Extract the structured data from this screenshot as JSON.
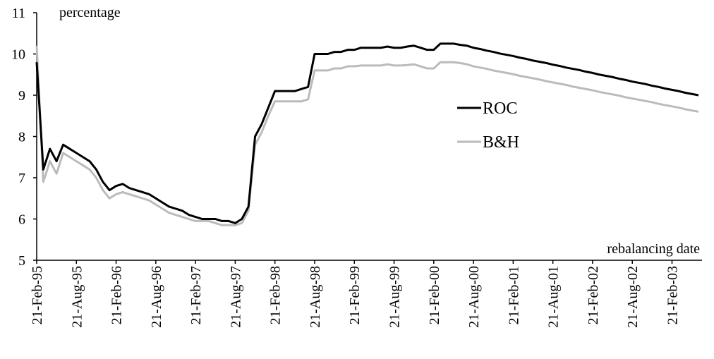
{
  "chart_data": {
    "type": "line",
    "y_label": "percentage",
    "x_label": "rebalancing date",
    "categories": [
      "21-Feb-95",
      null,
      null,
      null,
      null,
      null,
      "21-Aug-95",
      null,
      null,
      null,
      null,
      null,
      "21-Feb-96",
      null,
      null,
      null,
      null,
      null,
      "21-Aug-96",
      null,
      null,
      null,
      null,
      null,
      "21-Feb-97",
      null,
      null,
      null,
      null,
      null,
      "21-Aug-97",
      null,
      null,
      null,
      null,
      null,
      "21-Feb-98",
      null,
      null,
      null,
      null,
      null,
      "21-Aug-98",
      null,
      null,
      null,
      null,
      null,
      "21-Feb-99",
      null,
      null,
      null,
      null,
      null,
      "21-Aug-99",
      null,
      null,
      null,
      null,
      null,
      "21-Feb-00",
      null,
      null,
      null,
      null,
      null,
      "21-Aug-00",
      null,
      null,
      null,
      null,
      null,
      "21-Feb-01",
      null,
      null,
      null,
      null,
      null,
      "21-Aug-01",
      null,
      null,
      null,
      null,
      null,
      "21-Feb-02",
      null,
      null,
      null,
      null,
      null,
      "21-Aug-02",
      null,
      null,
      null,
      null,
      null,
      "21-Feb-03",
      null,
      null,
      null,
      null
    ],
    "series": [
      {
        "name": "ROC",
        "color": "#000000",
        "values": [
          9.8,
          7.2,
          7.7,
          7.4,
          7.8,
          7.7,
          7.6,
          7.5,
          7.4,
          7.2,
          6.9,
          6.7,
          6.8,
          6.85,
          6.75,
          6.7,
          6.65,
          6.6,
          6.5,
          6.4,
          6.3,
          6.25,
          6.2,
          6.1,
          6.05,
          6.0,
          6.0,
          6.0,
          5.95,
          5.95,
          5.9,
          6.0,
          6.3,
          8.0,
          8.3,
          8.7,
          9.1,
          9.1,
          9.1,
          9.1,
          9.15,
          9.2,
          10.0,
          10.0,
          10.0,
          10.05,
          10.05,
          10.1,
          10.1,
          10.15,
          10.15,
          10.15,
          10.15,
          10.18,
          10.15,
          10.15,
          10.18,
          10.2,
          10.15,
          10.1,
          10.1,
          10.25,
          10.25,
          10.25,
          10.22,
          10.2,
          10.15,
          10.12,
          10.08,
          10.05,
          10.01,
          9.98,
          9.95,
          9.91,
          9.88,
          9.84,
          9.81,
          9.78,
          9.74,
          9.71,
          9.67,
          9.64,
          9.61,
          9.57,
          9.54,
          9.5,
          9.47,
          9.44,
          9.4,
          9.37,
          9.33,
          9.3,
          9.27,
          9.23,
          9.2,
          9.16,
          9.13,
          9.1,
          9.06,
          9.03,
          9.0
        ]
      },
      {
        "name": "B&H",
        "color": "#bbbbbb",
        "values": [
          10.2,
          6.9,
          7.4,
          7.1,
          7.6,
          7.5,
          7.4,
          7.3,
          7.2,
          7.0,
          6.7,
          6.5,
          6.6,
          6.65,
          6.6,
          6.55,
          6.5,
          6.45,
          6.35,
          6.25,
          6.15,
          6.1,
          6.05,
          6.0,
          5.95,
          5.95,
          5.95,
          5.9,
          5.85,
          5.85,
          5.85,
          5.9,
          6.2,
          7.8,
          8.1,
          8.5,
          8.85,
          8.85,
          8.85,
          8.85,
          8.85,
          8.9,
          9.6,
          9.6,
          9.6,
          9.65,
          9.65,
          9.7,
          9.7,
          9.72,
          9.72,
          9.72,
          9.72,
          9.75,
          9.72,
          9.72,
          9.73,
          9.75,
          9.7,
          9.65,
          9.65,
          9.8,
          9.8,
          9.8,
          9.78,
          9.75,
          9.7,
          9.67,
          9.64,
          9.6,
          9.57,
          9.54,
          9.51,
          9.47,
          9.44,
          9.41,
          9.38,
          9.34,
          9.31,
          9.28,
          9.25,
          9.21,
          9.18,
          9.15,
          9.12,
          9.08,
          9.05,
          9.02,
          8.99,
          8.95,
          8.92,
          8.89,
          8.86,
          8.83,
          8.79,
          8.76,
          8.73,
          8.7,
          8.66,
          8.63,
          8.6
        ]
      }
    ],
    "ylim": [
      5,
      11
    ],
    "yticks": [
      5,
      6,
      7,
      8,
      9,
      10,
      11
    ],
    "grid": false
  }
}
